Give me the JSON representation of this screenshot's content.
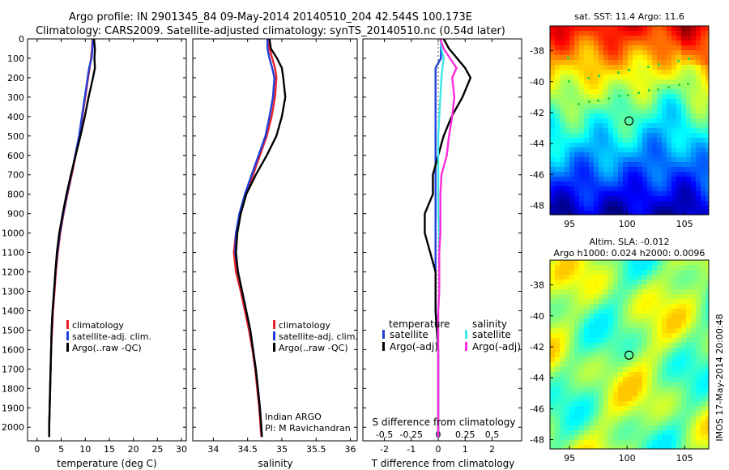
{
  "header": {
    "line1": "Argo profile: IN 2901345_84 09-May-2014 20140510_204 42.544S 100.173E",
    "line2": "Climatology: CARS2009. Satellite-adjusted climatology: synTS_20140510.nc (0.54d later)"
  },
  "colors": {
    "climatology": "#e8202a",
    "satellite": "#1f3fd8",
    "argo": "#000000",
    "sat_salinity": "#3ee6e6",
    "argo_salinity": "#ff2bdc"
  },
  "credit": "IMOS 17-May-2014 20:00:48",
  "chart_data": [
    {
      "type": "line",
      "id": "temperature",
      "xlabel": "temperature (deg C)",
      "ylabel": "",
      "xlim": [
        -2,
        31
      ],
      "ylim": [
        2070,
        0
      ],
      "xticks": [
        0,
        5,
        10,
        15,
        20,
        25,
        30
      ],
      "yticks": [
        0,
        100,
        200,
        300,
        400,
        500,
        600,
        700,
        800,
        900,
        1000,
        1100,
        1200,
        1300,
        1400,
        1500,
        1600,
        1700,
        1800,
        1900,
        2000
      ],
      "depth": [
        0,
        50,
        100,
        150,
        200,
        300,
        400,
        500,
        600,
        700,
        800,
        900,
        1000,
        1100,
        1200,
        1300,
        1400,
        1500,
        1600,
        1700,
        1800,
        1900,
        2000,
        2050
      ],
      "series": [
        {
          "name": "climatology",
          "color": "#e8202a",
          "values": [
            11.5,
            11.4,
            11.2,
            10.9,
            10.6,
            10.0,
            9.4,
            8.8,
            8.0,
            7.2,
            6.3,
            5.5,
            4.8,
            4.3,
            3.9,
            3.6,
            3.3,
            3.1,
            2.9,
            2.8,
            2.7,
            2.6,
            2.5,
            2.5
          ]
        },
        {
          "name": "satellite-adj. clim.",
          "color": "#1f3fd8",
          "values": [
            11.6,
            11.5,
            11.3,
            10.8,
            10.5,
            9.9,
            9.3,
            8.7,
            7.9,
            7.1,
            6.2,
            5.4,
            4.7,
            4.2,
            3.8,
            3.5,
            3.2,
            3.0,
            2.9,
            2.8,
            2.7,
            2.6,
            2.5,
            2.5
          ]
        },
        {
          "name": "Argo(..raw -QC)",
          "color": "#000000",
          "values": [
            11.8,
            12.0,
            11.9,
            12.0,
            11.6,
            10.7,
            9.9,
            9.0,
            8.0,
            7.0,
            6.1,
            5.3,
            4.6,
            4.1,
            3.8,
            3.5,
            3.2,
            3.0,
            2.9,
            2.8,
            2.7,
            2.6,
            2.5,
            2.5
          ]
        }
      ],
      "legend": {
        "position": "lower-right",
        "entries": [
          "climatology",
          "satellite-adj. clim.",
          "Argo(..raw -QC)"
        ]
      }
    },
    {
      "type": "line",
      "id": "salinity",
      "xlabel": "salinity",
      "ylabel": "",
      "xlim": [
        33.7,
        36.1
      ],
      "ylim": [
        2070,
        0
      ],
      "xticks": [
        34,
        34.5,
        35,
        35.5,
        36
      ],
      "xticklabels": [
        "34",
        "34.5",
        "35",
        "35.5",
        "36"
      ],
      "depth": [
        0,
        50,
        100,
        150,
        200,
        300,
        400,
        500,
        600,
        700,
        800,
        900,
        1000,
        1100,
        1200,
        1300,
        1400,
        1500,
        1600,
        1700,
        1800,
        1900,
        2000,
        2050
      ],
      "series": [
        {
          "name": "climatology",
          "color": "#e8202a",
          "values": [
            34.8,
            34.82,
            34.86,
            34.9,
            34.92,
            34.9,
            34.85,
            34.78,
            34.68,
            34.58,
            34.48,
            34.4,
            34.33,
            34.3,
            34.33,
            34.4,
            34.46,
            34.52,
            34.57,
            34.61,
            34.64,
            34.67,
            34.69,
            34.7
          ]
        },
        {
          "name": "satellite-adj. clim.",
          "color": "#1f3fd8",
          "values": [
            34.79,
            34.79,
            34.82,
            34.86,
            34.89,
            34.87,
            34.82,
            34.76,
            34.66,
            34.56,
            34.46,
            34.38,
            34.33,
            34.32,
            34.36,
            34.42,
            34.48,
            34.54,
            34.58,
            34.62,
            34.65,
            34.68,
            34.7,
            34.71
          ]
        },
        {
          "name": "Argo(..raw -QC)",
          "color": "#000000",
          "values": [
            34.82,
            34.84,
            34.93,
            35.0,
            35.02,
            35.05,
            35.0,
            34.92,
            34.78,
            34.62,
            34.48,
            34.4,
            34.35,
            34.33,
            34.36,
            34.42,
            34.48,
            34.54,
            34.58,
            34.62,
            34.65,
            34.68,
            34.7,
            34.71
          ]
        }
      ],
      "legend": {
        "position": "lower-right",
        "entries": [
          "climatology",
          "satellite-adj. clim.",
          "Argo(..raw -QC)"
        ]
      },
      "annotation": [
        "Indian ARGO",
        "PI: M Ravichandran"
      ]
    },
    {
      "type": "line",
      "id": "differences",
      "xlabel": "T difference from climatology",
      "x2label": "S difference from climatology",
      "xlim": [
        -2.8,
        3.1
      ],
      "x2lim": [
        -0.7,
        0.775
      ],
      "ylim": [
        2070,
        0
      ],
      "xticks": [
        -2,
        -1,
        0,
        1,
        2
      ],
      "x2ticks": [
        -0.5,
        -0.25,
        0,
        0.25,
        0.5
      ],
      "x2ticklabels": [
        "-0.5",
        "-0.25",
        "0",
        "0.25",
        "0.5"
      ],
      "depth": [
        0,
        50,
        100,
        150,
        200,
        300,
        400,
        500,
        600,
        700,
        800,
        900,
        1000,
        1100,
        1200,
        1300,
        1400,
        1500,
        1600,
        1700,
        1800,
        1900,
        2000,
        2050
      ],
      "series": [
        {
          "name": "temperature satellite",
          "color": "#1f3fd8",
          "axis": "T",
          "values": [
            0.1,
            0.1,
            0.1,
            -0.1,
            -0.1,
            -0.1,
            -0.1,
            -0.1,
            -0.1,
            -0.1,
            -0.1,
            -0.1,
            -0.1,
            -0.1,
            -0.1,
            -0.1,
            -0.1,
            -0.05,
            0,
            0,
            0,
            0,
            0,
            0
          ]
        },
        {
          "name": "temperature Argo(-adj)",
          "color": "#000000",
          "axis": "T",
          "values": [
            0.2,
            0.4,
            0.7,
            1.0,
            1.2,
            0.9,
            0.5,
            0.2,
            0.0,
            -0.2,
            -0.2,
            -0.5,
            -0.5,
            -0.3,
            -0.1,
            -0.1,
            -0.1,
            -0.05,
            0,
            0,
            0,
            0,
            0,
            0
          ]
        },
        {
          "name": "salinity satellite",
          "color": "#3ee6e6",
          "axis": "S",
          "values": [
            0.02,
            0.03,
            0.05,
            0.04,
            0.03,
            0.02,
            0.01,
            0.0,
            0.0,
            0.0,
            0.0,
            0.0,
            0.01,
            0.01,
            0.01,
            0.01,
            0.0,
            0.0,
            0.0,
            0.0,
            0.0,
            0.0,
            0.0,
            0.0
          ]
        },
        {
          "name": "salinity Argo(-adj)",
          "color": "#ff2bdc",
          "axis": "S",
          "values": [
            0.02,
            0.05,
            0.11,
            0.17,
            0.13,
            0.15,
            0.13,
            0.1,
            0.08,
            0.03,
            0.02,
            0.02,
            0.02,
            0.01,
            0.01,
            0.01,
            0.0,
            0.0,
            0.0,
            0.0,
            0.0,
            0.0,
            0.0,
            0.0
          ]
        }
      ],
      "legend": {
        "temperature_title": "temperature",
        "salinity_title": "salinity",
        "temperature_entries": [
          "satellite",
          "Argo(-adj)"
        ],
        "salinity_entries": [
          "satellite",
          "Argo(-adj)"
        ]
      }
    },
    {
      "type": "heatmap",
      "id": "sst_map",
      "title": "sat. SST: 11.4  Argo: 11.6",
      "xticks": [
        95,
        100,
        105
      ],
      "yticks": [
        -38,
        -40,
        -42,
        -44,
        -46,
        -48
      ],
      "xlim": [
        93.3,
        107.1
      ],
      "ylim": [
        -48.6,
        -36.4
      ],
      "marker": [
        100.17,
        -42.54
      ],
      "colormap": "jet"
    },
    {
      "type": "heatmap",
      "id": "sla_map",
      "title": "Altim. SLA: -0.012",
      "subtitle": "Argo h1000: 0.024 h2000: 0.0096",
      "xticks": [
        95,
        100,
        105
      ],
      "yticks": [
        -38,
        -40,
        -42,
        -44,
        -46,
        -48
      ],
      "xlim": [
        93.3,
        107.1
      ],
      "ylim": [
        -48.6,
        -36.4
      ],
      "marker": [
        100.17,
        -42.54
      ],
      "colormap": "jet"
    }
  ]
}
